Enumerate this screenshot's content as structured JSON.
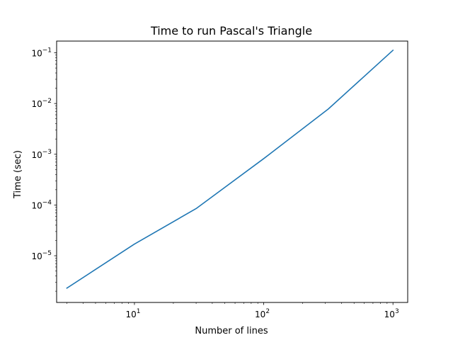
{
  "chart_data": {
    "type": "line",
    "title": "Time to run Pascal's Triangle",
    "xlabel": "Number of lines",
    "ylabel": "Time (sec)",
    "xscale": "log",
    "yscale": "log",
    "xlim": [
      2.5,
      1300
    ],
    "ylim": [
      1.2e-06,
      0.17
    ],
    "x_ticks": [
      {
        "value": 10,
        "label": "10",
        "exp": "1"
      },
      {
        "value": 100,
        "label": "10",
        "exp": "2"
      },
      {
        "value": 1000,
        "label": "10",
        "exp": "3"
      }
    ],
    "y_ticks": [
      {
        "value": 1e-05,
        "label": "10",
        "exp": "−5"
      },
      {
        "value": 0.0001,
        "label": "10",
        "exp": "−4"
      },
      {
        "value": 0.001,
        "label": "10",
        "exp": "−3"
      },
      {
        "value": 0.01,
        "label": "10",
        "exp": "−2"
      },
      {
        "value": 0.1,
        "label": "10",
        "exp": "−1"
      }
    ],
    "grid": false,
    "series": [
      {
        "color": "#1f77b4",
        "x": [
          3,
          10,
          30,
          100,
          316,
          1000
        ],
        "y": [
          2.3e-06,
          1.7e-05,
          8.5e-05,
          0.00082,
          0.0078,
          0.112
        ]
      }
    ]
  }
}
